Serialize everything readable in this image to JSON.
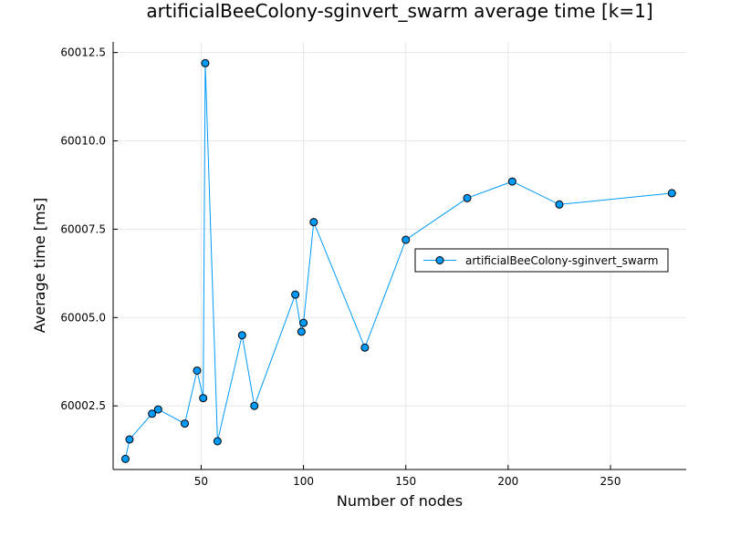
{
  "chart_data": {
    "type": "line",
    "title": "artificialBeeColony-sginvert_swarm average time [k=1]",
    "xlabel": "Number of nodes",
    "ylabel": "Average time [ms]",
    "xlim": [
      7,
      287
    ],
    "ylim": [
      60000.7,
      60012.8
    ],
    "xticks": [
      50,
      100,
      150,
      200,
      250
    ],
    "yticks": [
      60002.5,
      60005.0,
      60007.5,
      60010.0,
      60012.5
    ],
    "ytick_labels": [
      "60002.5",
      "60005.0",
      "60007.5",
      "60010.0",
      "60012.5"
    ],
    "grid": true,
    "legend": "center-right",
    "series": [
      {
        "name": "artificialBeeColony-sginvert_swarm",
        "color": "#009af9",
        "x": [
          13,
          15,
          26,
          29,
          42,
          48,
          51,
          52,
          58,
          70,
          76,
          96,
          99,
          100,
          105,
          130,
          150,
          180,
          202,
          225,
          280
        ],
        "y": [
          60001.0,
          60001.55,
          60002.28,
          60002.4,
          60002.0,
          60003.5,
          60002.72,
          60012.2,
          60001.5,
          60004.5,
          60002.5,
          60005.65,
          60004.6,
          60004.85,
          60007.7,
          60004.15,
          60007.2,
          60008.38,
          60008.85,
          60008.2,
          60008.52
        ]
      }
    ]
  }
}
